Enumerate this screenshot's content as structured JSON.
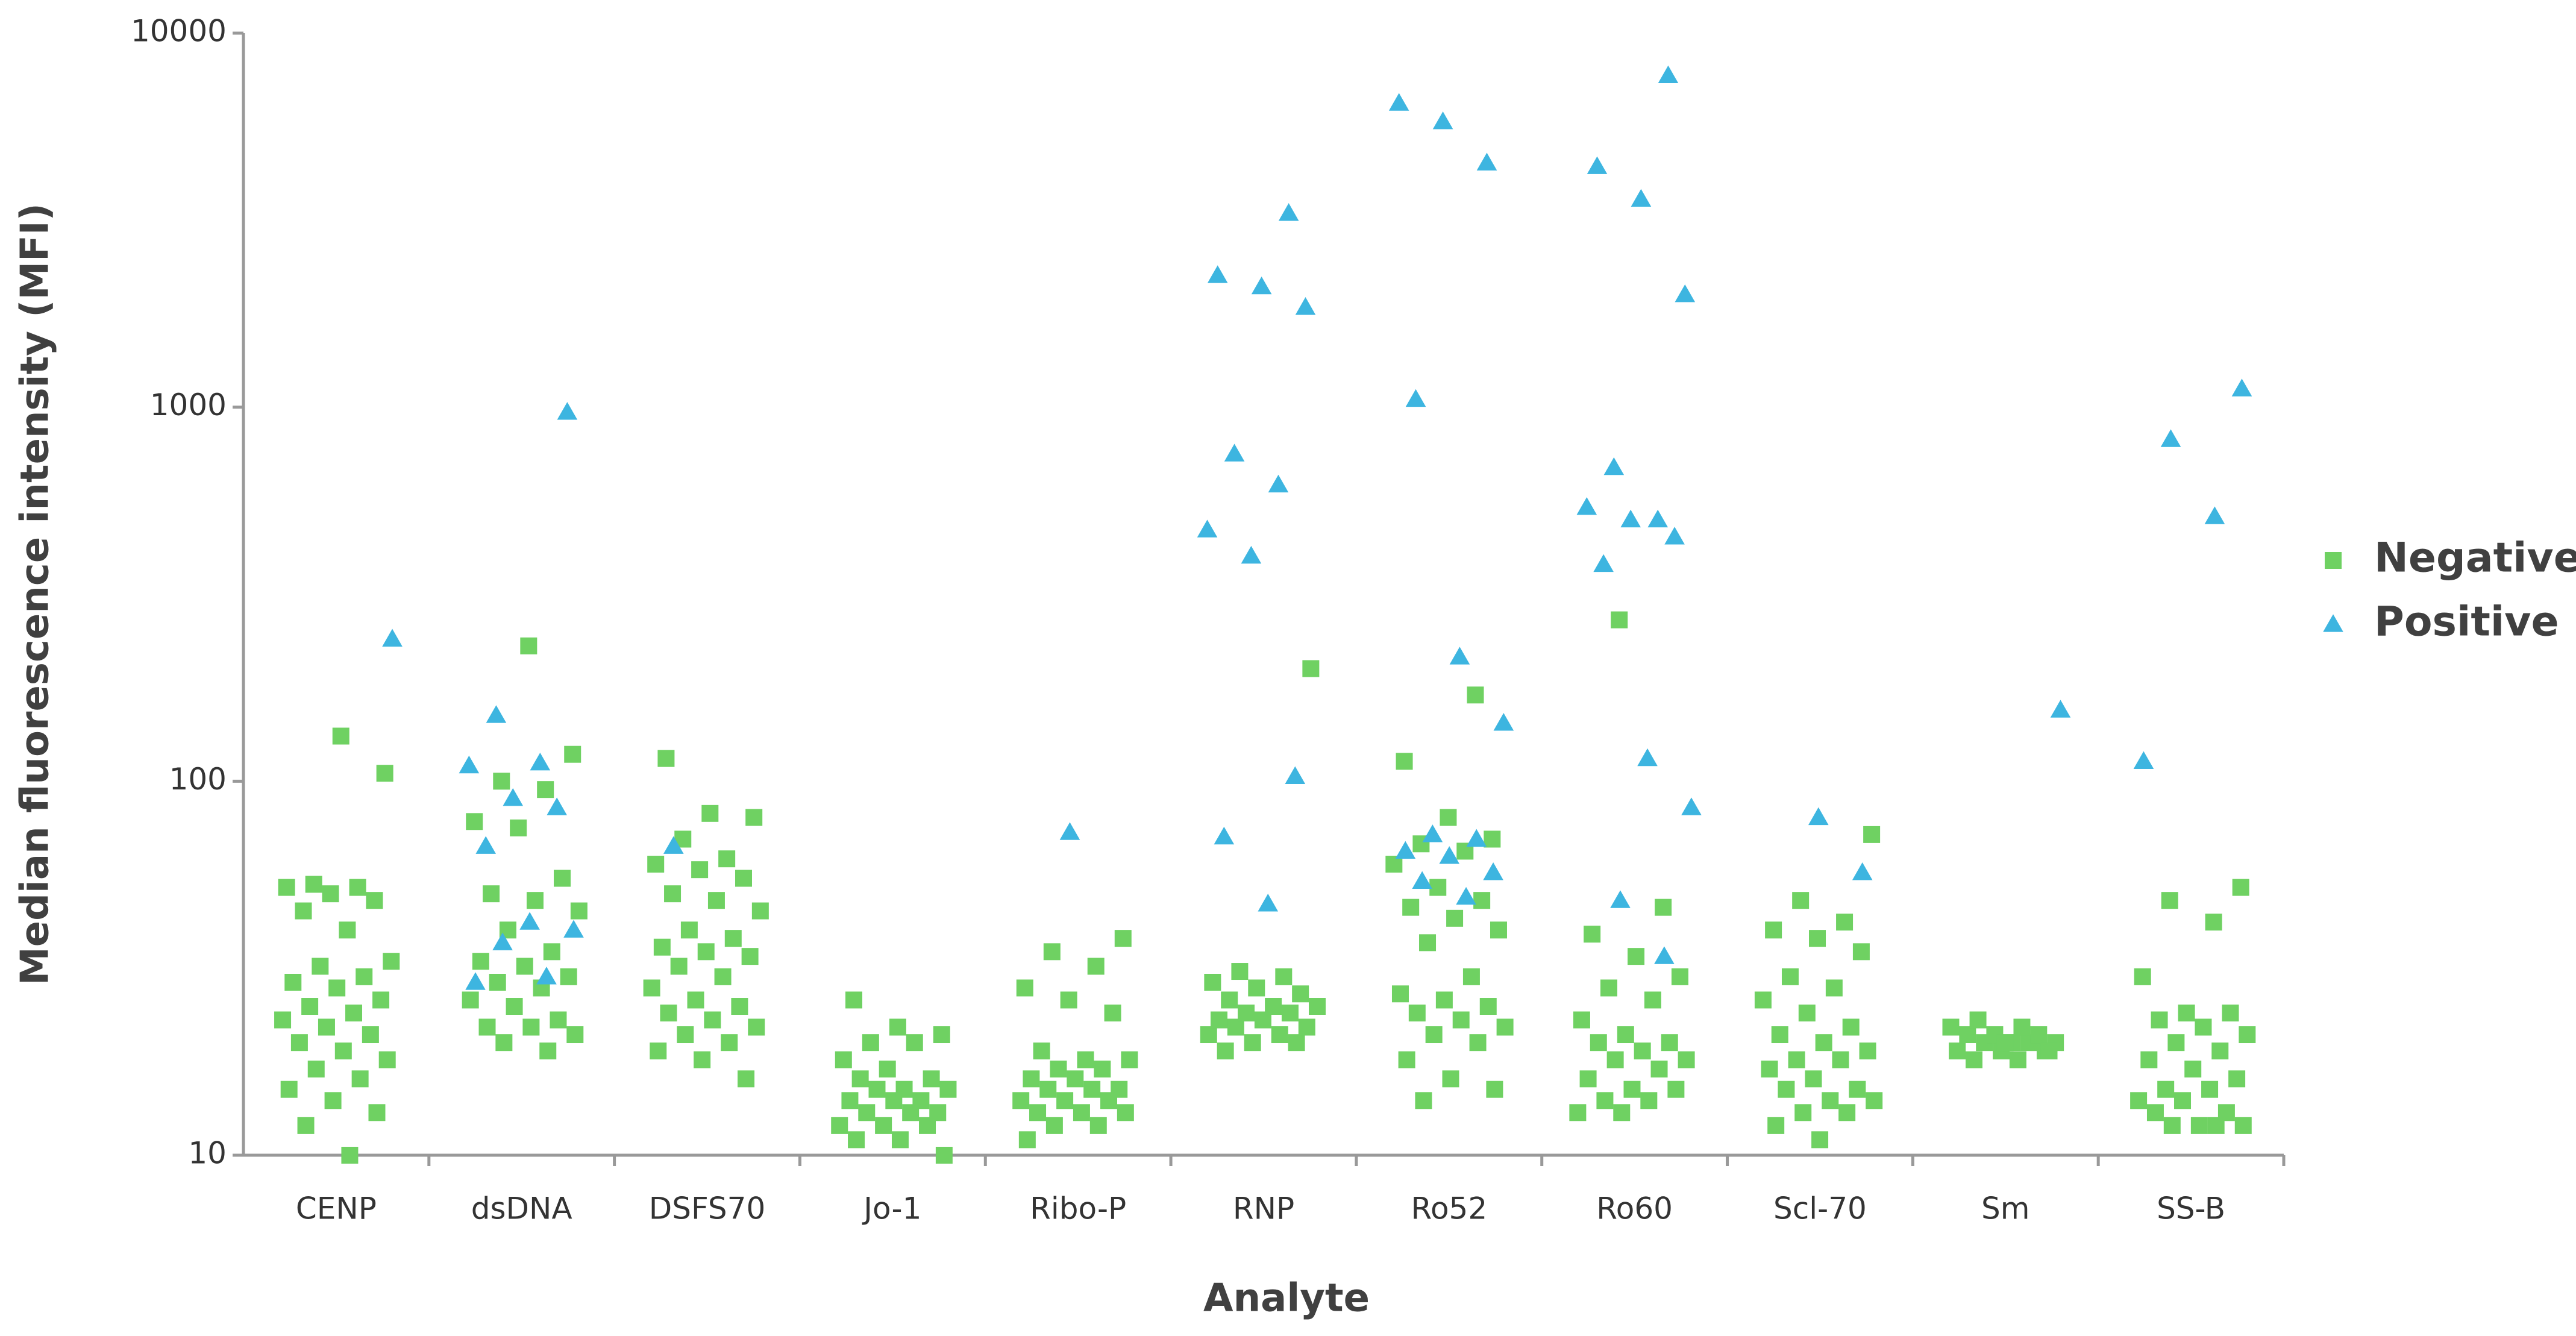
{
  "chart_data": {
    "type": "strip",
    "x_label": "Analyte",
    "y_label": "Median fluorescence intensity (MFI)",
    "categories": [
      "CENP",
      "dsDNA",
      "DSFS70",
      "Jo-1",
      "Ribo-P",
      "RNP",
      "Ro52",
      "Ro60",
      "Scl-70",
      "Sm",
      "SS-B"
    ],
    "ylim": [
      10,
      10000
    ],
    "yticks": [
      10,
      100,
      1000,
      10000
    ],
    "log_y": true,
    "grid": false,
    "legend": "right",
    "series": [
      {
        "name": "Negative",
        "color": "#6fd162",
        "marker": "square",
        "values": [
          [
            10,
            12,
            13,
            14,
            15,
            16,
            17,
            18,
            19,
            20,
            21,
            22,
            23,
            24,
            25,
            26,
            28,
            29,
            30,
            32,
            33,
            40,
            45,
            48,
            50,
            52,
            52,
            53,
            105,
            132
          ],
          [
            19,
            20,
            21,
            22,
            22,
            23,
            25,
            26,
            28,
            29,
            30,
            32,
            33,
            35,
            40,
            45,
            48,
            50,
            55,
            75,
            78,
            95,
            100,
            118,
            230
          ],
          [
            16,
            18,
            19,
            20,
            21,
            22,
            23,
            24,
            25,
            26,
            28,
            30,
            32,
            34,
            35,
            36,
            38,
            40,
            45,
            48,
            50,
            55,
            58,
            60,
            62,
            70,
            80,
            82,
            115
          ],
          [
            10,
            11,
            11,
            12,
            12,
            12,
            13,
            13,
            13,
            14,
            14,
            14,
            15,
            15,
            15,
            16,
            16,
            17,
            18,
            20,
            20,
            21,
            22,
            26
          ],
          [
            11,
            12,
            12,
            13,
            13,
            13,
            14,
            14,
            14,
            15,
            15,
            15,
            16,
            16,
            17,
            17,
            18,
            18,
            19,
            24,
            26,
            28,
            32,
            35,
            38
          ],
          [
            19,
            20,
            20,
            21,
            21,
            22,
            22,
            23,
            23,
            24,
            24,
            25,
            25,
            26,
            27,
            28,
            29,
            30,
            31,
            200
          ],
          [
            14,
            15,
            16,
            18,
            20,
            21,
            22,
            23,
            24,
            25,
            26,
            27,
            30,
            37,
            40,
            43,
            46,
            48,
            52,
            60,
            65,
            68,
            70,
            80,
            113,
            170
          ],
          [
            13,
            13,
            14,
            14,
            15,
            15,
            16,
            17,
            18,
            18,
            19,
            20,
            20,
            21,
            23,
            26,
            28,
            30,
            34,
            39,
            46,
            270
          ],
          [
            11,
            12,
            13,
            13,
            14,
            14,
            15,
            15,
            16,
            17,
            18,
            18,
            19,
            20,
            21,
            22,
            24,
            26,
            28,
            30,
            35,
            38,
            40,
            42,
            48,
            72
          ],
          [
            18,
            18,
            19,
            19,
            19,
            20,
            20,
            20,
            20,
            21,
            21,
            21,
            22,
            22,
            23,
            19,
            20
          ],
          [
            12,
            12,
            12,
            12,
            13,
            13,
            14,
            14,
            15,
            15,
            16,
            17,
            18,
            19,
            20,
            21,
            22,
            23,
            24,
            24,
            30,
            42,
            48,
            52
          ]
        ]
      },
      {
        "name": "Positive",
        "color": "#3db5e0",
        "marker": "triangle",
        "values": [
          [
            240
          ],
          [
            29,
            30,
            37,
            40,
            42,
            67,
            85,
            90,
            110,
            112,
            150,
            970
          ],
          [
            67
          ],
          [],
          [
            73
          ],
          [
            47,
            71,
            103,
            400,
            470,
            620,
            750,
            1850,
            2100,
            2250,
            3300
          ],
          [
            49,
            54,
            57,
            63,
            65,
            70,
            72,
            143,
            215,
            1050,
            4500,
            5800,
            6500
          ],
          [
            34,
            48,
            85,
            115,
            380,
            450,
            500,
            540,
            500,
            690,
            2000,
            3600,
            4400,
            7700
          ],
          [
            57,
            80
          ],
          [
            155
          ],
          [
            113,
            510,
            820,
            1120
          ]
        ]
      }
    ]
  }
}
